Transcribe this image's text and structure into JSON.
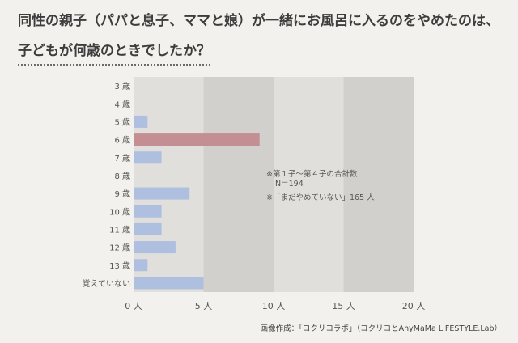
{
  "title": {
    "line1": "同性の親子（パパと息子、ママと娘）が一緒にお風呂に入るのをやめたのは、",
    "line2": "子どもが何歳のときでしたか？"
  },
  "chart_data": {
    "type": "bar",
    "orientation": "horizontal",
    "categories": [
      "3 歳",
      "4 歳",
      "5 歳",
      "6 歳",
      "7 歳",
      "8 歳",
      "9 歳",
      "10 歳",
      "11 歳",
      "12 歳",
      "13 歳",
      "覚えていない"
    ],
    "values": [
      0,
      0,
      1,
      9,
      2,
      0,
      4,
      2,
      2,
      3,
      1,
      5
    ],
    "highlight_index": 3,
    "xlim": [
      0,
      20
    ],
    "xticks": [
      "0 人",
      "5 人",
      "10 人",
      "15 人",
      "20 人"
    ],
    "annotations": [
      "※第１子〜第４子の合計数",
      "N＝194",
      "※「まだやめていない」165 人"
    ],
    "colors": {
      "bar": "#aebfe0",
      "highlight": "#c48f92",
      "band_light": "#e0dfdb",
      "band_dark": "#d2d0cc"
    }
  },
  "credit": "画像作成：「コクリコラボ」（コクリコとAnyMaMa LIFESTYLE.Lab）"
}
